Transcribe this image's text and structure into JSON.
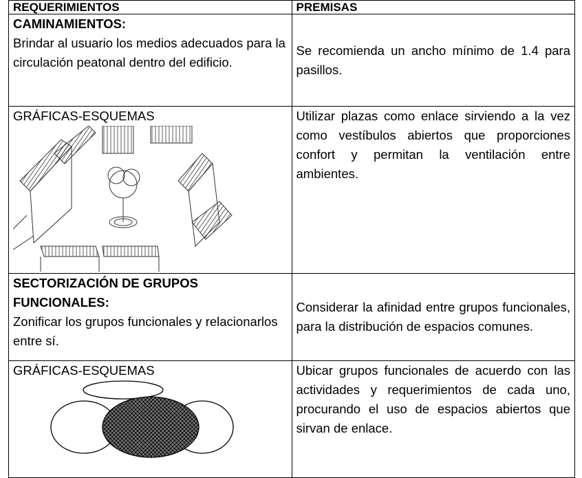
{
  "table": {
    "header": [
      "REQUERIMIENTOS",
      "PREMISAS"
    ],
    "rows": [
      {
        "heading": "CAMINAMIENTOS:",
        "text": "Brindar al usuario los medios adecuados para la circulación peatonal dentro del edificio.",
        "premise": "Se recomienda un ancho mínimo de 1.4 para pasillos."
      },
      {
        "label": "GRÁFICAS-ESQUEMAS",
        "premise": "Utilizar  plazas como enlace sirviendo a la vez como vestíbulos abiertos que proporciones confort y permitan la ventilación entre ambientes."
      },
      {
        "heading": "SECTORIZACIÓN DE GRUPOS FUNCIONALES:",
        "text": "Zonificar los grupos funcionales y relacionarlos entre sí.",
        "premise": "Considerar la afinidad entre grupos funcionales, para la distribución de espacios comunes."
      },
      {
        "label": "GRÁFICAS-ESQUEMAS",
        "premise": "Ubicar grupos funcionales de acuerdo con las actividades y requerimientos de cada uno, procurando el uso de espacios abiertos que sirvan de enlace."
      }
    ]
  }
}
